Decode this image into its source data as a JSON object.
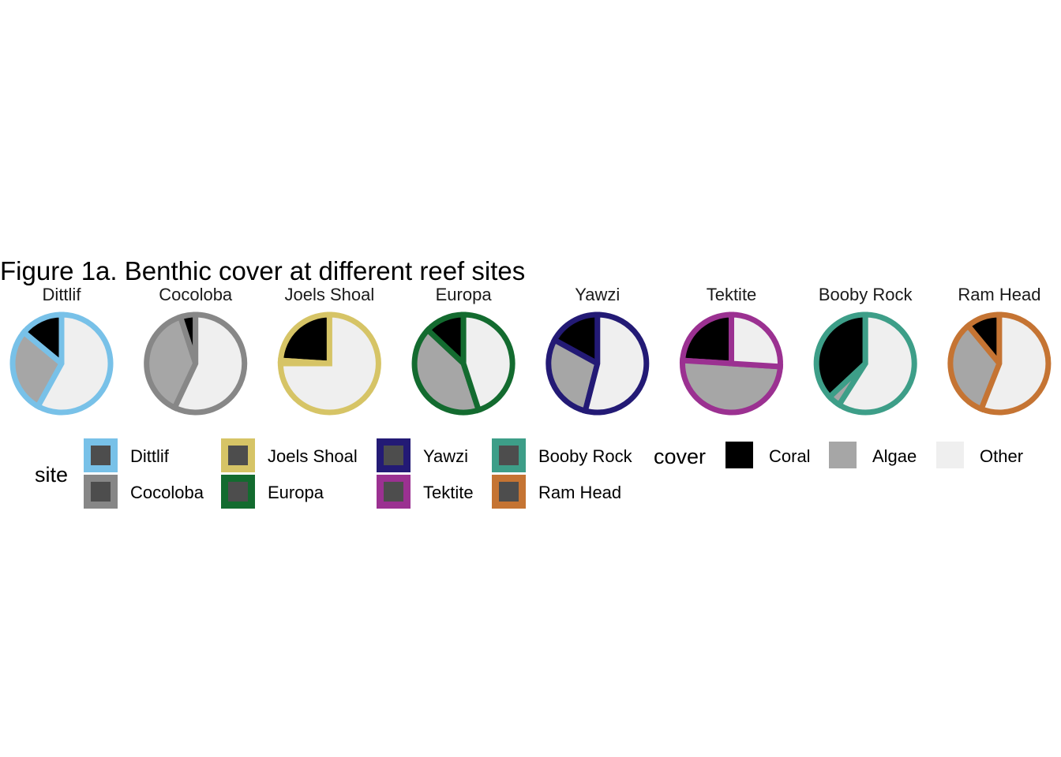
{
  "chart_data": {
    "type": "pie",
    "title": "Figure 1a. Benthic cover at different reef sites",
    "cover_order": [
      "Coral",
      "Algae",
      "Other"
    ],
    "cover_colors": {
      "Coral": "#000000",
      "Algae": "#a6a6a6",
      "Other": "#efefef"
    },
    "sites": [
      {
        "name": "Dittlif",
        "color": "#78c1e8",
        "values": {
          "Coral": 14,
          "Algae": 28,
          "Other": 58
        }
      },
      {
        "name": "Cocoloba",
        "color": "#878787",
        "values": {
          "Coral": 5,
          "Algae": 38,
          "Other": 57
        }
      },
      {
        "name": "Joels Shoal",
        "color": "#d6c466",
        "values": {
          "Coral": 24,
          "Algae": 1,
          "Other": 75
        }
      },
      {
        "name": "Europa",
        "color": "#136b2f",
        "values": {
          "Coral": 13,
          "Algae": 42,
          "Other": 45
        }
      },
      {
        "name": "Yawzi",
        "color": "#231a75",
        "values": {
          "Coral": 17,
          "Algae": 29,
          "Other": 54
        }
      },
      {
        "name": "Tektite",
        "color": "#9b3191",
        "values": {
          "Coral": 24,
          "Algae": 50,
          "Other": 26
        }
      },
      {
        "name": "Booby Rock",
        "color": "#3d9e88",
        "values": {
          "Coral": 37,
          "Algae": 4,
          "Other": 59
        }
      },
      {
        "name": "Ram Head",
        "color": "#c57433",
        "values": {
          "Coral": 11,
          "Algae": 33,
          "Other": 56
        }
      }
    ],
    "legend": {
      "site_title": "site",
      "cover_title": "cover",
      "site_entries": [
        "Dittlif",
        "Cocoloba",
        "Joels Shoal",
        "Europa",
        "Yawzi",
        "Tektite",
        "Booby Rock",
        "Ram Head"
      ],
      "cover_entries": [
        "Coral",
        "Algae",
        "Other"
      ],
      "placement": "bottom"
    }
  }
}
